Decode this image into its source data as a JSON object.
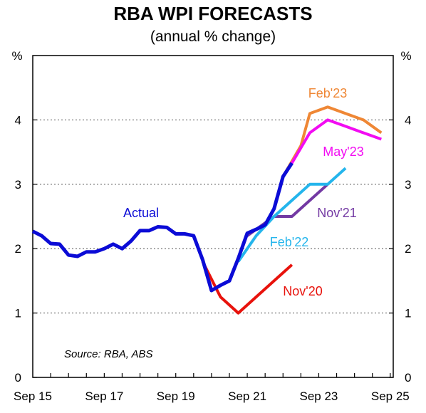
{
  "chart_data": {
    "type": "line",
    "title": "RBA WPI FORECASTS",
    "subtitle": "(annual % change)",
    "ylabel_left": "%",
    "ylabel_right": "%",
    "ylim": [
      0,
      5
    ],
    "yticks": [
      0,
      1,
      2,
      3,
      4
    ],
    "xlim": [
      "2015-09",
      "2025-10"
    ],
    "xticks": [
      "Sep 15",
      "Sep 17",
      "Sep 19",
      "Sep 21",
      "Sep 23",
      "Sep 25"
    ],
    "grid": "horizontal dotted at 1, 2, 3, 4",
    "source_note": "Source: RBA, ABS",
    "series": [
      {
        "name": "Actual",
        "color": "#0b0bd6",
        "points": [
          [
            "2015-09",
            2.27
          ],
          [
            "2015-12",
            2.2
          ],
          [
            "2016-03",
            2.08
          ],
          [
            "2016-06",
            2.07
          ],
          [
            "2016-09",
            1.9
          ],
          [
            "2016-12",
            1.88
          ],
          [
            "2017-03",
            1.95
          ],
          [
            "2017-06",
            1.95
          ],
          [
            "2017-09",
            2.0
          ],
          [
            "2017-12",
            2.07
          ],
          [
            "2018-03",
            2.0
          ],
          [
            "2018-06",
            2.12
          ],
          [
            "2018-09",
            2.28
          ],
          [
            "2018-12",
            2.28
          ],
          [
            "2019-03",
            2.34
          ],
          [
            "2019-06",
            2.33
          ],
          [
            "2019-09",
            2.23
          ],
          [
            "2019-12",
            2.23
          ],
          [
            "2020-03",
            2.2
          ],
          [
            "2020-06",
            1.83
          ],
          [
            "2020-09",
            1.35
          ],
          [
            "2020-12",
            1.43
          ],
          [
            "2021-03",
            1.5
          ],
          [
            "2021-06",
            1.85
          ],
          [
            "2021-09",
            2.24
          ],
          [
            "2021-12",
            2.3
          ],
          [
            "2022-03",
            2.37
          ],
          [
            "2022-06",
            2.62
          ],
          [
            "2022-09",
            3.12
          ],
          [
            "2022-12",
            3.33
          ]
        ]
      },
      {
        "name": "Nov'20",
        "color": "#e8120c",
        "points": [
          [
            "2020-06",
            1.8
          ],
          [
            "2020-12",
            1.25
          ],
          [
            "2021-06",
            1.0
          ],
          [
            "2022-12",
            1.75
          ]
        ]
      },
      {
        "name": "Feb'22",
        "color": "#24b5ec",
        "points": [
          [
            "2021-06",
            1.8
          ],
          [
            "2021-12",
            2.2
          ],
          [
            "2022-06",
            2.5
          ],
          [
            "2022-12",
            2.75
          ],
          [
            "2023-06",
            3.0
          ],
          [
            "2023-12",
            3.0
          ],
          [
            "2024-06",
            3.25
          ]
        ]
      },
      {
        "name": "Nov'21",
        "color": "#7339a3",
        "points": [
          [
            "2021-09",
            2.2
          ],
          [
            "2021-12",
            2.3
          ],
          [
            "2022-06",
            2.5
          ],
          [
            "2022-12",
            2.5
          ],
          [
            "2023-12",
            3.0
          ]
        ]
      },
      {
        "name": "Feb'23",
        "color": "#ef8735",
        "points": [
          [
            "2022-09",
            3.12
          ],
          [
            "2023-03",
            3.6
          ],
          [
            "2023-06",
            4.1
          ],
          [
            "2023-12",
            4.2
          ],
          [
            "2024-06",
            4.1
          ],
          [
            "2024-12",
            4.0
          ],
          [
            "2025-06",
            3.8
          ]
        ]
      },
      {
        "name": "May'23",
        "color": "#f20cf2",
        "points": [
          [
            "2022-09",
            3.12
          ],
          [
            "2022-12",
            3.33
          ],
          [
            "2023-06",
            3.8
          ],
          [
            "2023-12",
            4.0
          ],
          [
            "2024-06",
            3.9
          ],
          [
            "2024-12",
            3.8
          ],
          [
            "2025-06",
            3.7
          ]
        ]
      }
    ]
  }
}
